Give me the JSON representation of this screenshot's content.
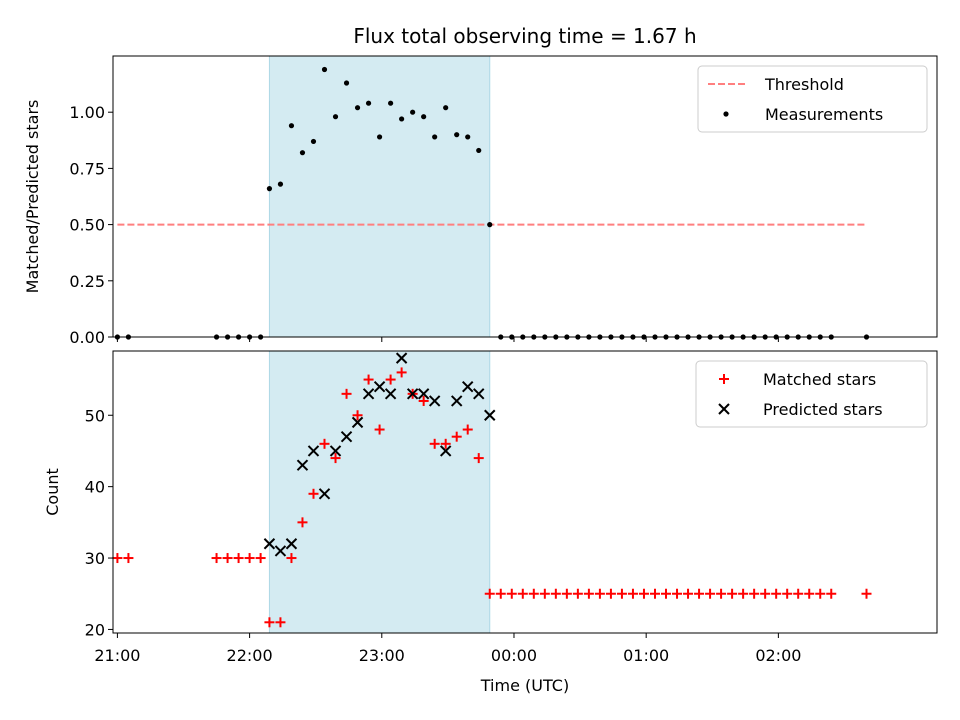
{
  "chart_data": [
    {
      "type": "scatter",
      "title": "Flux total observing time = 1.67 h",
      "xlabel": "",
      "ylabel": "Matched/Predicted stars",
      "xlim": [
        "20:58",
        "03:12"
      ],
      "ylim": [
        0,
        1.25
      ],
      "yticks": [
        0.0,
        0.25,
        0.5,
        0.75,
        1.0
      ],
      "ytick_labels": [
        "0.00",
        "0.25",
        "0.50",
        "0.75",
        "1.00"
      ],
      "legend": {
        "position": "top-right",
        "entries": [
          "Threshold",
          "Measurements"
        ]
      },
      "highlight_span": {
        "x0": "22:09",
        "x1": "23:49",
        "color": "#d4ebf2"
      },
      "threshold": {
        "name": "Threshold",
        "y": 0.5,
        "x0": "21:00",
        "x1": "02:40",
        "color": "#ff7f7f"
      },
      "series": [
        {
          "name": "Measurements",
          "color": "#000000",
          "marker": "dot",
          "points": [
            [
              "21:00",
              0.0
            ],
            [
              "21:05",
              0.0
            ],
            [
              "21:45",
              0.0
            ],
            [
              "21:50",
              0.0
            ],
            [
              "21:55",
              0.0
            ],
            [
              "22:00",
              0.0
            ],
            [
              "22:05",
              0.0
            ],
            [
              "22:09",
              0.66
            ],
            [
              "22:14",
              0.68
            ],
            [
              "22:19",
              0.94
            ],
            [
              "22:24",
              0.82
            ],
            [
              "22:29",
              0.87
            ],
            [
              "22:34",
              1.19
            ],
            [
              "22:39",
              0.98
            ],
            [
              "22:44",
              1.13
            ],
            [
              "22:49",
              1.02
            ],
            [
              "22:54",
              1.04
            ],
            [
              "22:59",
              0.89
            ],
            [
              "23:04",
              1.04
            ],
            [
              "23:09",
              0.97
            ],
            [
              "23:14",
              1.0
            ],
            [
              "23:19",
              0.98
            ],
            [
              "23:24",
              0.89
            ],
            [
              "23:29",
              1.02
            ],
            [
              "23:34",
              0.9
            ],
            [
              "23:39",
              0.89
            ],
            [
              "23:44",
              0.83
            ],
            [
              "23:49",
              0.5
            ],
            [
              "23:54",
              0.0
            ],
            [
              "23:59",
              0.0
            ],
            [
              "00:04",
              0.0
            ],
            [
              "00:09",
              0.0
            ],
            [
              "00:14",
              0.0
            ],
            [
              "00:19",
              0.0
            ],
            [
              "00:24",
              0.0
            ],
            [
              "00:29",
              0.0
            ],
            [
              "00:34",
              0.0
            ],
            [
              "00:39",
              0.0
            ],
            [
              "00:44",
              0.0
            ],
            [
              "00:49",
              0.0
            ],
            [
              "00:54",
              0.0
            ],
            [
              "00:59",
              0.0
            ],
            [
              "01:04",
              0.0
            ],
            [
              "01:09",
              0.0
            ],
            [
              "01:14",
              0.0
            ],
            [
              "01:19",
              0.0
            ],
            [
              "01:24",
              0.0
            ],
            [
              "01:29",
              0.0
            ],
            [
              "01:34",
              0.0
            ],
            [
              "01:39",
              0.0
            ],
            [
              "01:44",
              0.0
            ],
            [
              "01:49",
              0.0
            ],
            [
              "01:54",
              0.0
            ],
            [
              "01:59",
              0.0
            ],
            [
              "02:04",
              0.0
            ],
            [
              "02:09",
              0.0
            ],
            [
              "02:14",
              0.0
            ],
            [
              "02:19",
              0.0
            ],
            [
              "02:24",
              0.0
            ],
            [
              "02:40",
              0.0
            ]
          ]
        }
      ]
    },
    {
      "type": "scatter",
      "title": "",
      "xlabel": "Time (UTC)",
      "ylabel": "Count",
      "xlim": [
        "20:58",
        "03:12"
      ],
      "ylim": [
        19.5,
        59
      ],
      "xticks": [
        "21:00",
        "22:00",
        "23:00",
        "00:00",
        "01:00",
        "02:00"
      ],
      "yticks": [
        20,
        30,
        40,
        50
      ],
      "ytick_labels": [
        "20",
        "30",
        "40",
        "50"
      ],
      "legend": {
        "position": "top-right",
        "entries": [
          "Matched stars",
          "Predicted stars"
        ]
      },
      "highlight_span": {
        "x0": "22:09",
        "x1": "23:49",
        "color": "#d4ebf2"
      },
      "series": [
        {
          "name": "Matched stars",
          "color": "#ff0000",
          "marker": "plus",
          "points": [
            [
              "21:00",
              30
            ],
            [
              "21:05",
              30
            ],
            [
              "21:45",
              30
            ],
            [
              "21:50",
              30
            ],
            [
              "21:55",
              30
            ],
            [
              "22:00",
              30
            ],
            [
              "22:05",
              30
            ],
            [
              "22:09",
              21
            ],
            [
              "22:14",
              21
            ],
            [
              "22:19",
              30
            ],
            [
              "22:24",
              35
            ],
            [
              "22:29",
              39
            ],
            [
              "22:34",
              46
            ],
            [
              "22:39",
              44
            ],
            [
              "22:44",
              53
            ],
            [
              "22:49",
              50
            ],
            [
              "22:54",
              55
            ],
            [
              "22:59",
              48
            ],
            [
              "23:04",
              55
            ],
            [
              "23:09",
              56
            ],
            [
              "23:14",
              53
            ],
            [
              "23:19",
              52
            ],
            [
              "23:24",
              46
            ],
            [
              "23:29",
              46
            ],
            [
              "23:34",
              47
            ],
            [
              "23:39",
              48
            ],
            [
              "23:44",
              44
            ],
            [
              "23:49",
              25
            ],
            [
              "23:54",
              25
            ],
            [
              "23:59",
              25
            ],
            [
              "00:04",
              25
            ],
            [
              "00:09",
              25
            ],
            [
              "00:14",
              25
            ],
            [
              "00:19",
              25
            ],
            [
              "00:24",
              25
            ],
            [
              "00:29",
              25
            ],
            [
              "00:34",
              25
            ],
            [
              "00:39",
              25
            ],
            [
              "00:44",
              25
            ],
            [
              "00:49",
              25
            ],
            [
              "00:54",
              25
            ],
            [
              "00:59",
              25
            ],
            [
              "01:04",
              25
            ],
            [
              "01:09",
              25
            ],
            [
              "01:14",
              25
            ],
            [
              "01:19",
              25
            ],
            [
              "01:24",
              25
            ],
            [
              "01:29",
              25
            ],
            [
              "01:34",
              25
            ],
            [
              "01:39",
              25
            ],
            [
              "01:44",
              25
            ],
            [
              "01:49",
              25
            ],
            [
              "01:54",
              25
            ],
            [
              "01:59",
              25
            ],
            [
              "02:04",
              25
            ],
            [
              "02:09",
              25
            ],
            [
              "02:14",
              25
            ],
            [
              "02:19",
              25
            ],
            [
              "02:24",
              25
            ],
            [
              "02:40",
              25
            ]
          ]
        },
        {
          "name": "Predicted stars",
          "color": "#000000",
          "marker": "x",
          "points": [
            [
              "22:09",
              32
            ],
            [
              "22:14",
              31
            ],
            [
              "22:19",
              32
            ],
            [
              "22:24",
              43
            ],
            [
              "22:29",
              45
            ],
            [
              "22:34",
              39
            ],
            [
              "22:39",
              45
            ],
            [
              "22:44",
              47
            ],
            [
              "22:49",
              49
            ],
            [
              "22:54",
              53
            ],
            [
              "22:59",
              54
            ],
            [
              "23:04",
              53
            ],
            [
              "23:09",
              58
            ],
            [
              "23:14",
              53
            ],
            [
              "23:19",
              53
            ],
            [
              "23:24",
              52
            ],
            [
              "23:29",
              45
            ],
            [
              "23:34",
              52
            ],
            [
              "23:39",
              54
            ],
            [
              "23:44",
              53
            ],
            [
              "23:49",
              50
            ]
          ]
        }
      ]
    }
  ]
}
